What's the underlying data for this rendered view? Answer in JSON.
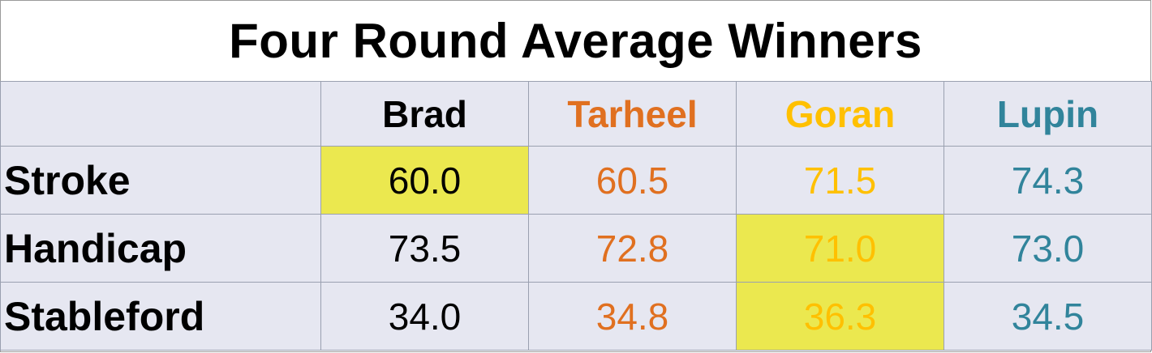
{
  "chart_data": {
    "type": "table",
    "title": "Four Round Average Winners",
    "columns": [
      "Brad",
      "Tarheel",
      "Goran",
      "Lupin"
    ],
    "column_colors": {
      "Brad": "#000000",
      "Tarheel": "#e07020",
      "Goran": "#ffc000",
      "Lupin": "#31849b"
    },
    "highlight_color": "#ebe84f",
    "rows": [
      {
        "label": "Stroke",
        "values": [
          "60.0",
          "60.5",
          "71.5",
          "74.3"
        ],
        "winner": "Brad"
      },
      {
        "label": "Handicap",
        "values": [
          "73.5",
          "72.8",
          "71.0",
          "73.0"
        ],
        "winner": "Goran"
      },
      {
        "label": "Stableford",
        "values": [
          "34.0",
          "34.8",
          "36.3",
          "34.5"
        ],
        "winner": "Goran"
      }
    ]
  }
}
